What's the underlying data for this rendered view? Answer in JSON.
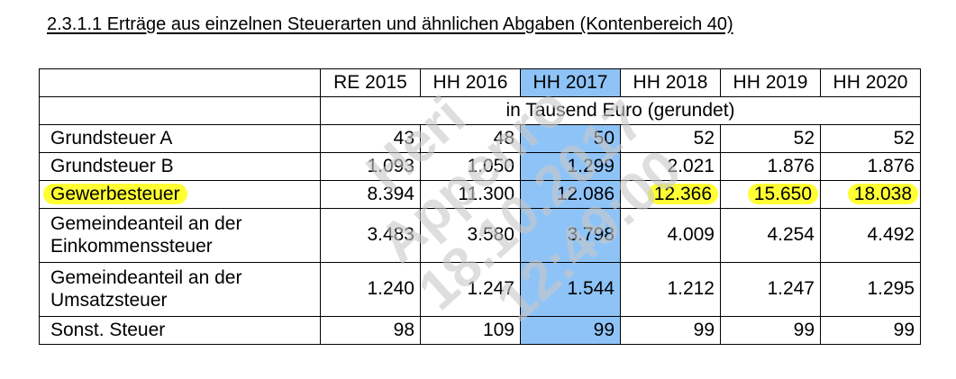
{
  "heading": "2.3.1.1 Erträge aus einzelnen Steuerarten und ähnlichen Abgaben (Kontenbereich 40)",
  "columns": [
    "RE 2015",
    "HH 2016",
    "HH 2017",
    "HH 2018",
    "HH 2019",
    "HH 2020"
  ],
  "unit_note": "in Tausend Euro (gerundet)",
  "rows": [
    {
      "label": "Grundsteuer A",
      "values": [
        "43",
        "48",
        "50",
        "52",
        "52",
        "52"
      ]
    },
    {
      "label": "Grundsteuer B",
      "values": [
        "1.093",
        "1.050",
        "1.299",
        "2.021",
        "1.876",
        "1.876"
      ]
    },
    {
      "label": "Gewerbesteuer",
      "values": [
        "8.394",
        "11.300",
        "12.086",
        "12.366",
        "15.650",
        "18.038"
      ]
    },
    {
      "label_lines": [
        "Gemeindeanteil an der",
        "Einkommenssteuer"
      ],
      "values": [
        "3.483",
        "3.580",
        "3.798",
        "4.009",
        "4.254",
        "4.492"
      ]
    },
    {
      "label_lines": [
        "Gemeindeanteil an der",
        "Umsatzsteuer"
      ],
      "values": [
        "1.240",
        "1.247",
        "1.544",
        "1.212",
        "1.247",
        "1.295"
      ]
    },
    {
      "label": "Sonst. Steuer",
      "values": [
        "98",
        "109",
        "99",
        "99",
        "99",
        "99"
      ]
    }
  ],
  "watermark": {
    "lines": [
      "Heri",
      "Appenro",
      "18.10.2017",
      "12:49:00"
    ],
    "color": "#c8c8c8"
  },
  "highlight_colors": {
    "column": "#8ec3f7",
    "marker": "#ffff33"
  }
}
